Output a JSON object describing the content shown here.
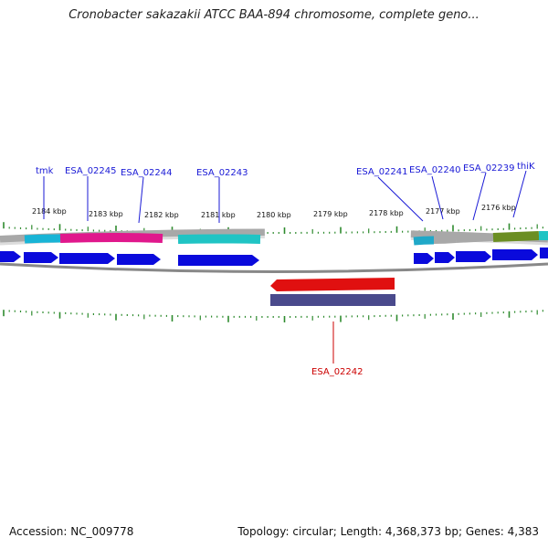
{
  "title": "Cronobacter sakazakii ATCC BAA-894 chromosome, complete geno...",
  "footer": {
    "accession": "Accession: NC_009778",
    "topology": "Topology: circular; Length: 4,368,373 bp; Genes: 4,383"
  },
  "colors": {
    "tick": "#2e8b2e",
    "label_line": "#1a1ad6",
    "label_text": "#1a1ad6",
    "rev_label": "#cc0000",
    "backbone": "#888888",
    "cds_fwd": "#0a0adc",
    "cds_rev": "#e01010",
    "gene_rev": "#4a4a8c"
  },
  "scale_labels": [
    "2184 kbp",
    "2183 kbp",
    "2182 kbp",
    "2181 kbp",
    "2180 kbp",
    "2179 kbp",
    "2178 kbp",
    "2177 kbp",
    "2176 kbp"
  ],
  "gene_labels": [
    "tmk",
    "ESA_02245",
    "ESA_02244",
    "ESA_02243",
    "ESA_02241",
    "ESA_02240",
    "ESA_02239",
    "thiK"
  ],
  "reverse_labels": [
    "ESA_02242"
  ]
}
